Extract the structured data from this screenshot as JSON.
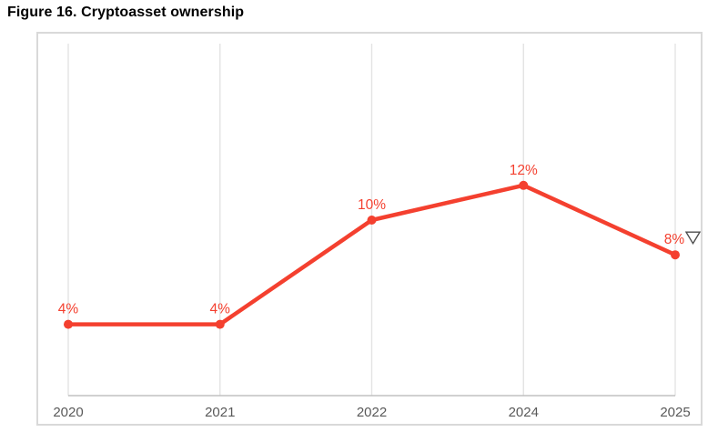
{
  "figure_title": "Figure 16. Cryptoasset ownership",
  "colors": {
    "line": "#f4402f",
    "point": "#f4402f",
    "data_label": "#f4402f",
    "gridline": "#e3e3e3",
    "axis_line": "#c0c0c0",
    "tick_label": "#595959",
    "panel_border": "#d9d9d9",
    "triangle_marker": "#4d4d4d"
  },
  "chart_data": {
    "type": "line",
    "title": "Figure 16. Cryptoasset ownership",
    "categories": [
      "2020",
      "2021",
      "2022",
      "2024",
      "2025"
    ],
    "series": [
      {
        "name": "Cryptoasset ownership",
        "values": [
          4,
          4,
          10,
          12,
          8
        ]
      }
    ],
    "data_labels": [
      "4%",
      "4%",
      "10%",
      "12%",
      "8%"
    ],
    "last_point_annotation": "triangle-down-outline",
    "xlabel": "",
    "ylabel": "",
    "ylim": [
      0,
      20
    ],
    "unit": "%",
    "grid": "vertical-only",
    "legend": "none"
  }
}
